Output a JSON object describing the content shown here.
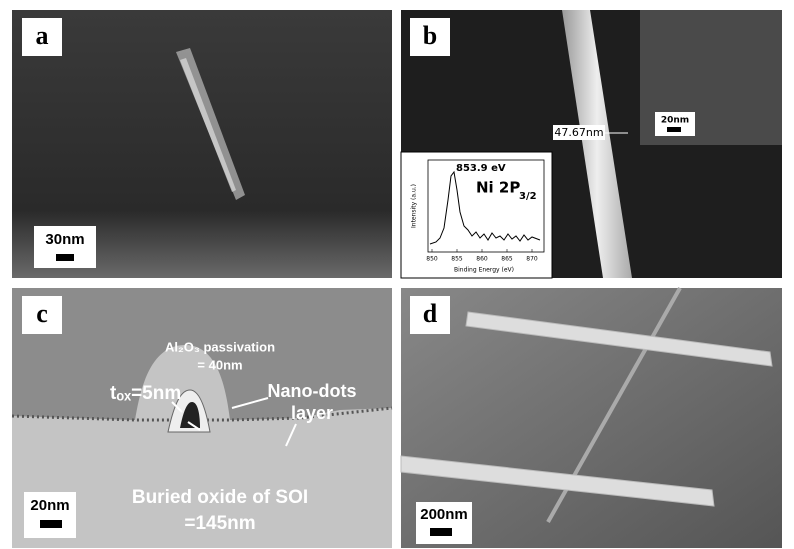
{
  "panels": [
    {
      "label": "a",
      "scale_bar": "30nm"
    },
    {
      "label": "b",
      "measurement": "47.67nm",
      "inset_scale_bar": "20nm",
      "spectrum": {
        "peak_label": "853.9 eV",
        "line": "Ni 2P",
        "line_sub": "3/2",
        "y_label": "Intensity (a.u.)",
        "x_label": "Binding Energy (eV)",
        "xticks": [
          850,
          855,
          860,
          865,
          870
        ]
      }
    },
    {
      "label": "c",
      "passivation": "Al₂O₃ passivation",
      "passivation_value": "= 40nm",
      "tox": "tₒₓ=5nm",
      "nanodots": "Nano-dots",
      "nanodots_2": "layer",
      "scale_bar": "20nm",
      "box": "Buried oxide of SOI",
      "box_value": "=145nm"
    },
    {
      "label": "d",
      "scale_bar": "200nm"
    }
  ]
}
